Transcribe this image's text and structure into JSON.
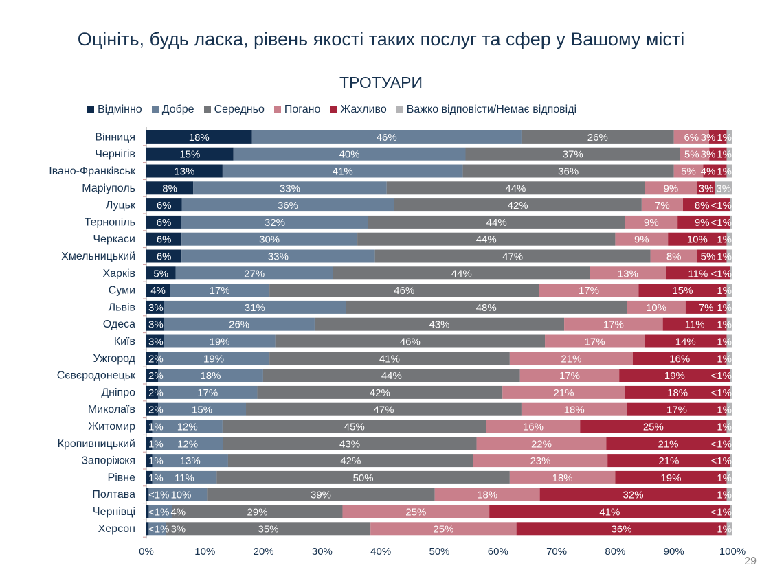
{
  "title": "Оцініть, будь ласка, рівень якості таких послуг та сфер у Вашому місті",
  "page_number": "29",
  "chart_data": {
    "type": "bar",
    "orientation": "horizontal",
    "stacked": "100%",
    "title": "ТРОТУАРИ",
    "legend_position": "top",
    "xlim": [
      0,
      100
    ],
    "x_ticks": [
      "0%",
      "10%",
      "20%",
      "30%",
      "40%",
      "50%",
      "60%",
      "70%",
      "80%",
      "90%",
      "100%"
    ],
    "categories": [
      "Вінниця",
      "Чернігів",
      "Івано-Франківськ",
      "Маріуполь",
      "Луцьк",
      "Тернопіль",
      "Черкаси",
      "Хмельницький",
      "Харків",
      "Суми",
      "Львів",
      "Одеса",
      "Київ",
      "Ужгород",
      "Сєвєродонецьк",
      "Дніпро",
      "Миколаїв",
      "Житомир",
      "Кропивницький",
      "Запоріжжя",
      "Рівне",
      "Полтава",
      "Чернівці",
      "Херсон"
    ],
    "series": [
      {
        "name": "Відмінно",
        "color": "#0e2a4b",
        "values": [
          18,
          15,
          13,
          8,
          6,
          6,
          6,
          6,
          5,
          4,
          3,
          3,
          3,
          2,
          2,
          2,
          2,
          1,
          1,
          1,
          1,
          0.4,
          0.4,
          0.4
        ],
        "labels": [
          "18%",
          "15%",
          "13%",
          "8%",
          "6%",
          "6%",
          "6%",
          "6%",
          "5%",
          "4%",
          "3%",
          "3%",
          "3%",
          "2%",
          "2%",
          "2%",
          "2%",
          "1%",
          "1%",
          "1%",
          "1%",
          "<1%",
          "<1%",
          "<1%"
        ]
      },
      {
        "name": "Добре",
        "color": "#687f98",
        "values": [
          46,
          40,
          41,
          33,
          36,
          32,
          30,
          33,
          27,
          17,
          31,
          26,
          19,
          19,
          18,
          17,
          15,
          12,
          12,
          13,
          11,
          10,
          4,
          3
        ],
        "labels": [
          "46%",
          "40%",
          "41%",
          "33%",
          "36%",
          "32%",
          "30%",
          "33%",
          "27%",
          "17%",
          "31%",
          "26%",
          "19%",
          "19%",
          "18%",
          "17%",
          "15%",
          "12%",
          "12%",
          "13%",
          "11%",
          "10%",
          "4%",
          "3%"
        ]
      },
      {
        "name": "Середньо",
        "color": "#737578",
        "values": [
          26,
          37,
          36,
          44,
          42,
          44,
          44,
          47,
          44,
          46,
          48,
          43,
          46,
          41,
          44,
          42,
          47,
          45,
          43,
          42,
          50,
          39,
          29,
          35
        ],
        "labels": [
          "26%",
          "37%",
          "36%",
          "44%",
          "42%",
          "44%",
          "44%",
          "47%",
          "44%",
          "46%",
          "48%",
          "43%",
          "46%",
          "41%",
          "44%",
          "42%",
          "47%",
          "45%",
          "43%",
          "42%",
          "50%",
          "39%",
          "29%",
          "35%"
        ]
      },
      {
        "name": "Погано",
        "color": "#c97f8b",
        "values": [
          6,
          5,
          5,
          9,
          7,
          9,
          9,
          8,
          13,
          17,
          10,
          17,
          17,
          21,
          17,
          21,
          18,
          16,
          22,
          23,
          18,
          18,
          25,
          25
        ],
        "labels": [
          "6%",
          "5%",
          "5%",
          "9%",
          "7%",
          "9%",
          "9%",
          "8%",
          "13%",
          "17%",
          "10%",
          "17%",
          "17%",
          "21%",
          "17%",
          "21%",
          "18%",
          "16%",
          "22%",
          "23%",
          "18%",
          "18%",
          "25%",
          "25%"
        ]
      },
      {
        "name": "Жахливо",
        "color": "#a5233a",
        "values": [
          3,
          3,
          4,
          3,
          8,
          9,
          10,
          5,
          11,
          15,
          7,
          11,
          14,
          16,
          19,
          18,
          17,
          25,
          21,
          21,
          19,
          32,
          41,
          36
        ],
        "labels": [
          "3%",
          "3%",
          "4%",
          "3%",
          "8%",
          "9%",
          "10%",
          "5%",
          "11%",
          "15%",
          "7%",
          "11%",
          "14%",
          "16%",
          "19%",
          "18%",
          "17%",
          "25%",
          "21%",
          "21%",
          "19%",
          "32%",
          "41%",
          "36%"
        ]
      },
      {
        "name": "Важко відповісти/Немає відповіді",
        "color": "#b4b4b6",
        "values": [
          1,
          1,
          1,
          3,
          0.4,
          0.4,
          1,
          1,
          0.4,
          1,
          1,
          1,
          1,
          1,
          0.4,
          0.4,
          1,
          1,
          0.4,
          0.4,
          1,
          1,
          0.4,
          1
        ],
        "labels": [
          "1%",
          "1%",
          "1%",
          "3%",
          "<1%",
          "<1%",
          "1%",
          "1%",
          "<1%",
          "1%",
          "1%",
          "1%",
          "1%",
          "1%",
          "<1%",
          "<1%",
          "1%",
          "1%",
          "<1%",
          "<1%",
          "1%",
          "1%",
          "<1%",
          "1%"
        ]
      }
    ]
  }
}
